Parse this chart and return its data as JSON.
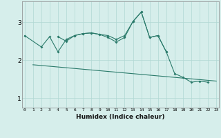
{
  "xlabel": "Humidex (Indice chaleur)",
  "x_values": [
    0,
    1,
    2,
    3,
    4,
    5,
    6,
    7,
    8,
    9,
    10,
    11,
    12,
    13,
    14,
    15,
    16,
    17,
    18,
    19,
    20,
    21,
    22,
    23
  ],
  "line1_x": [
    0,
    2,
    3,
    4,
    5,
    6,
    7,
    8,
    9,
    10,
    11,
    12,
    13,
    14,
    15,
    16,
    17
  ],
  "line1_y": [
    2.65,
    2.35,
    2.62,
    2.22,
    2.55,
    2.65,
    2.7,
    2.72,
    2.68,
    2.65,
    2.55,
    2.65,
    3.02,
    3.27,
    2.6,
    2.65,
    2.22
  ],
  "line2_x": [
    4,
    5,
    6,
    7,
    8,
    9,
    10,
    11,
    12,
    13,
    14,
    15,
    16,
    17,
    18,
    19,
    20,
    21,
    22
  ],
  "line2_y": [
    2.62,
    2.5,
    2.65,
    2.7,
    2.72,
    2.68,
    2.6,
    2.48,
    2.6,
    3.02,
    3.27,
    2.6,
    2.65,
    2.22,
    1.65,
    1.55,
    1.42,
    1.45,
    1.42
  ],
  "line3_x": [
    1,
    23
  ],
  "line3_y": [
    1.88,
    1.45
  ],
  "line_color": "#2a7a6a",
  "bg_color": "#d6eeeb",
  "grid_color": "#b0d8d4",
  "ylim": [
    0.75,
    3.55
  ],
  "yticks": [
    1,
    2,
    3
  ],
  "xlim": [
    -0.3,
    23.3
  ]
}
